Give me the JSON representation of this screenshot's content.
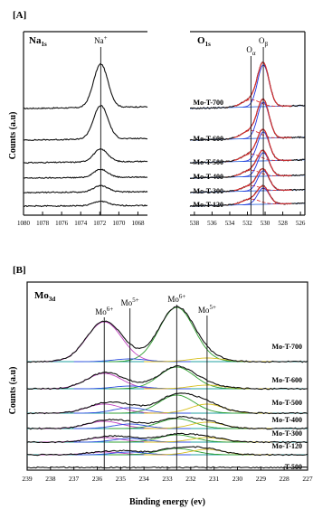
{
  "figure": {
    "panel_a_label": "[A]",
    "panel_b_label": "[B]",
    "ylabel": "Counts (a.u)",
    "xlabel_b": "Binding energy (ev)"
  },
  "chart_data": [
    {
      "id": "na1s",
      "type": "line",
      "panel": "[A]",
      "title": "Na1s",
      "title_base": "Na",
      "title_sub": "1s",
      "xlim": [
        1080,
        1067
      ],
      "xticks": [
        1080,
        1078,
        1076,
        1074,
        1072,
        1070,
        1068
      ],
      "xticklabels": [
        "1080",
        "1078",
        "1076",
        "1074",
        "1072",
        "1070",
        "1068"
      ],
      "ylabel": "Counts (a.u)",
      "grid": false,
      "reference_lines": [
        {
          "x": 1071.9,
          "label": "Na+",
          "label_base": "Na",
          "label_sup": "+"
        }
      ],
      "series": [
        {
          "name": "Mo-T-700",
          "peak": 1071.9,
          "amplitude": 48,
          "baseline": 1.0
        },
        {
          "name": "Mo-T-600",
          "peak": 1071.9,
          "amplitude": 37,
          "baseline": 1.0
        },
        {
          "name": "Mo-T-500",
          "peak": 1071.9,
          "amplitude": 14,
          "baseline": 0.8
        },
        {
          "name": "Mo-T-400",
          "peak": 1071.9,
          "amplitude": 9,
          "baseline": 0.6
        },
        {
          "name": "Mo-T-300",
          "peak": 1071.9,
          "amplitude": 7,
          "baseline": 0.5
        },
        {
          "name": "Mo-T-120",
          "peak": 1071.9,
          "amplitude": 5,
          "baseline": 0.4
        }
      ]
    },
    {
      "id": "o1s",
      "type": "line",
      "panel": "[A]",
      "title": "O1s",
      "title_base": "O",
      "title_sub": "1s",
      "xlim": [
        538.5,
        525.5
      ],
      "xticks": [
        538,
        536,
        534,
        532,
        530,
        528,
        526
      ],
      "xticklabels": [
        "538",
        "536",
        "534",
        "532",
        "530",
        "528",
        "526"
      ],
      "grid": false,
      "reference_lines": [
        {
          "x": 531.6,
          "label": "Oα",
          "label_base": "O",
          "label_sub": "α"
        },
        {
          "x": 530.2,
          "label": "Oβ",
          "label_base": "O",
          "label_sub": "β"
        }
      ],
      "series": [
        {
          "name": "Mo-T-700",
          "peak": 530.2,
          "amplitude": 46,
          "shoulder": 8
        },
        {
          "name": "Mo-T-600",
          "peak": 530.2,
          "amplitude": 40,
          "shoulder": 9
        },
        {
          "name": "Mo-T-500",
          "peak": 530.2,
          "amplitude": 32,
          "shoulder": 8
        },
        {
          "name": "Mo-T-400",
          "peak": 530.2,
          "amplitude": 26,
          "shoulder": 7
        },
        {
          "name": "Mo-T-300",
          "peak": 530.2,
          "amplitude": 22,
          "shoulder": 6
        },
        {
          "name": "Mo-T-120",
          "peak": 530.2,
          "amplitude": 18,
          "shoulder": 6
        }
      ],
      "colors": {
        "data": "#111111",
        "envelope": "#2233dd",
        "fit": "#e03030",
        "background": "#3a6ee0"
      }
    },
    {
      "id": "mo3d",
      "type": "line",
      "panel": "[B]",
      "title": "Mo3d",
      "title_base": "Mo",
      "title_sub": "3d",
      "xlabel": "Binding energy (ev)",
      "ylabel": "Counts (a.u)",
      "xlim": [
        239,
        227
      ],
      "xticks": [
        239,
        238,
        237,
        236,
        235,
        234,
        233,
        232,
        231,
        230,
        229,
        228,
        227
      ],
      "xticklabels": [
        "239",
        "238",
        "237",
        "236",
        "235",
        "234",
        "233",
        "232",
        "231",
        "230",
        "229",
        "228",
        "227"
      ],
      "grid": false,
      "reference_lines": [
        {
          "x": 235.7,
          "label": "Mo6+",
          "label_base": "Mo",
          "label_sup": "6+"
        },
        {
          "x": 234.6,
          "label": "Mo5+",
          "label_base": "Mo",
          "label_sup": "5+"
        },
        {
          "x": 232.6,
          "label": "Mo6+",
          "label_base": "Mo",
          "label_sup": "6+"
        },
        {
          "x": 231.3,
          "label": "Mo5+",
          "label_base": "Mo",
          "label_sup": "5+"
        }
      ],
      "series": [
        {
          "name": "Mo-T-700",
          "mo6_a": 44,
          "mo6_b": 60,
          "mo5_a": 3,
          "mo5_b": 4
        },
        {
          "name": "Mo-T-600",
          "mo6_a": 17,
          "mo6_b": 24,
          "mo5_a": 3,
          "mo5_b": 4
        },
        {
          "name": "Mo-T-500",
          "mo6_a": 10,
          "mo6_b": 20,
          "mo5_a": 6,
          "mo5_b": 10
        },
        {
          "name": "Mo-T-400",
          "mo6_a": 8,
          "mo6_b": 11,
          "mo5_a": 5,
          "mo5_b": 7
        },
        {
          "name": "Mo-T-300",
          "mo6_a": 5,
          "mo6_b": 8,
          "mo5_a": 4,
          "mo5_b": 5
        },
        {
          "name": "Mo-T-120",
          "mo6_a": 3,
          "mo6_b": 7,
          "mo5_a": 3,
          "mo5_b": 6
        },
        {
          "name": "T-500",
          "mo6_a": 0,
          "mo6_b": 0,
          "mo5_a": 0,
          "mo5_b": 0
        }
      ],
      "colors": {
        "data": "#111111",
        "mo6_a": "#c040c0",
        "mo6_b": "#30a030",
        "mo5_a": "#3050e0",
        "mo5_b": "#d8c020",
        "baseline": "#20a0a0"
      }
    }
  ]
}
